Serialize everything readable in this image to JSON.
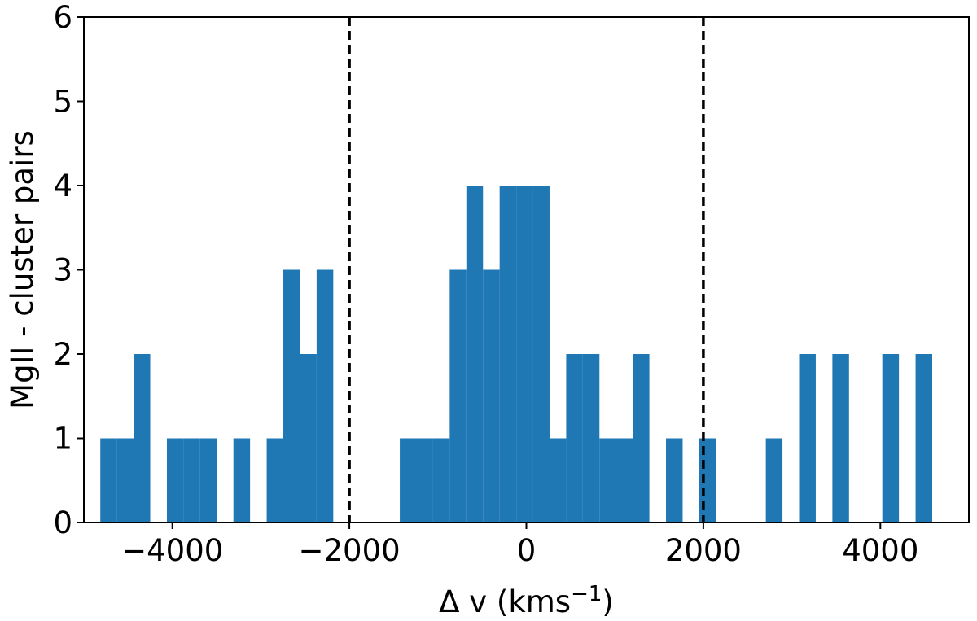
{
  "chart_data": {
    "type": "bar",
    "title": "",
    "xlabel_main": "Δ v (kms",
    "xlabel_sup": "−1",
    "xlabel_tail": ")",
    "ylabel": "MgII - cluster pairs",
    "xlim": [
      -5000,
      5000
    ],
    "ylim": [
      0,
      6
    ],
    "bin_width": 188,
    "bar_color": "#1f77b4",
    "xticks": [
      -4000,
      -2000,
      0,
      2000,
      4000
    ],
    "xtick_labels": [
      "−4000",
      "−2000",
      "0",
      "2000",
      "4000"
    ],
    "yticks": [
      0,
      1,
      2,
      3,
      4,
      5,
      6
    ],
    "ytick_labels": [
      "0",
      "1",
      "2",
      "3",
      "4",
      "5",
      "6"
    ],
    "vlines": [
      -2000,
      2000
    ],
    "bins": [
      {
        "x": -4814,
        "count": 1
      },
      {
        "x": -4626,
        "count": 1
      },
      {
        "x": -4438,
        "count": 2
      },
      {
        "x": -4062,
        "count": 1
      },
      {
        "x": -3874,
        "count": 1
      },
      {
        "x": -3686,
        "count": 1
      },
      {
        "x": -3310,
        "count": 1
      },
      {
        "x": -2934,
        "count": 1
      },
      {
        "x": -2746,
        "count": 3
      },
      {
        "x": -2558,
        "count": 2
      },
      {
        "x": -2370,
        "count": 3
      },
      {
        "x": -1430,
        "count": 1
      },
      {
        "x": -1242,
        "count": 1
      },
      {
        "x": -1054,
        "count": 1
      },
      {
        "x": -866,
        "count": 3
      },
      {
        "x": -678,
        "count": 4
      },
      {
        "x": -490,
        "count": 3
      },
      {
        "x": -302,
        "count": 4
      },
      {
        "x": -114,
        "count": 4
      },
      {
        "x": 74,
        "count": 4
      },
      {
        "x": 262,
        "count": 1
      },
      {
        "x": 450,
        "count": 2
      },
      {
        "x": 638,
        "count": 2
      },
      {
        "x": 826,
        "count": 1
      },
      {
        "x": 1014,
        "count": 1
      },
      {
        "x": 1202,
        "count": 2
      },
      {
        "x": 1578,
        "count": 1
      },
      {
        "x": 1954,
        "count": 1
      },
      {
        "x": 2706,
        "count": 1
      },
      {
        "x": 3082,
        "count": 2
      },
      {
        "x": 3458,
        "count": 2
      },
      {
        "x": 4022,
        "count": 2
      },
      {
        "x": 4398,
        "count": 2
      }
    ]
  }
}
